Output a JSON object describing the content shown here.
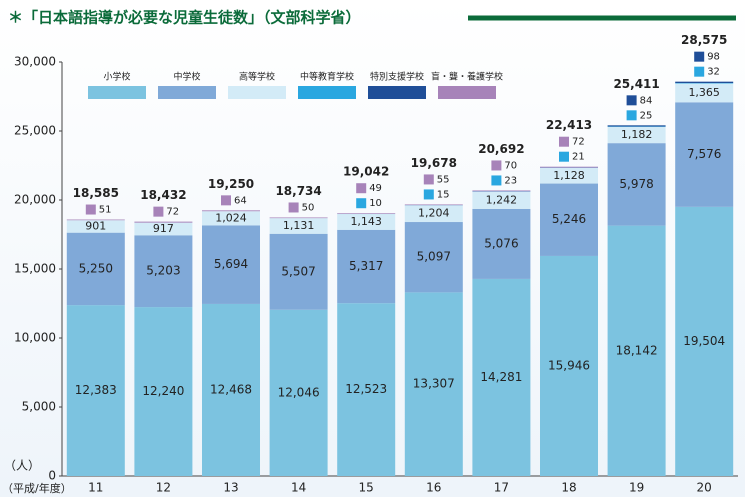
{
  "chart_data": {
    "type": "stacked_bar",
    "title": "＊「日本語指導が必要な児童生徒数」（文部科学省）",
    "y_label": "（人）",
    "x_label": "（平成/年度）",
    "categories": [
      "11",
      "12",
      "13",
      "14",
      "15",
      "16",
      "17",
      "18",
      "19",
      "20"
    ],
    "series": [
      {
        "name": "小学校",
        "color": "#7cc3e0",
        "values": [
          12383,
          12240,
          12468,
          12046,
          12523,
          13307,
          14281,
          15946,
          18142,
          19504
        ],
        "value_labels": [
          "12,383",
          "12,240",
          "12,468",
          "12,046",
          "12,523",
          "13,307",
          "14,281",
          "15,946",
          "18,142",
          "19,504"
        ]
      },
      {
        "name": "中学校",
        "color": "#80a9d8",
        "values": [
          5250,
          5203,
          5694,
          5507,
          5317,
          5097,
          5076,
          5246,
          5978,
          7576
        ],
        "value_labels": [
          "5,250",
          "5,203",
          "5,694",
          "5,507",
          "5,317",
          "5,097",
          "5,076",
          "5,246",
          "5,978",
          "7,576"
        ]
      },
      {
        "name": "高等学校",
        "color": "#d3ebf7",
        "values": [
          901,
          917,
          1024,
          1131,
          1143,
          1204,
          1242,
          1128,
          1182,
          1365
        ],
        "value_labels": [
          "901",
          "917",
          "1,024",
          "1,131",
          "1,143",
          "1,204",
          "1,242",
          "1,128",
          "1,182",
          "1,365"
        ]
      },
      {
        "name": "中等教育学校",
        "color": "#2aa7e0",
        "values": [
          null,
          null,
          null,
          null,
          10,
          15,
          23,
          21,
          25,
          32
        ]
      },
      {
        "name": "特別支援学校",
        "color": "#1f4e98",
        "values": [
          null,
          null,
          null,
          null,
          null,
          null,
          null,
          null,
          84,
          98
        ]
      },
      {
        "name": "盲・聾・養護学校",
        "color": "#a783b9",
        "values": [
          51,
          72,
          64,
          50,
          49,
          55,
          70,
          72,
          null,
          null
        ]
      }
    ],
    "totals": [
      18585,
      18432,
      19250,
      18734,
      19042,
      19678,
      20692,
      22413,
      25411,
      28575
    ],
    "total_labels": [
      "18,585",
      "18,432",
      "19,250",
      "18,734",
      "19,042",
      "19,678",
      "20,692",
      "22,413",
      "25,411",
      "28,575"
    ],
    "ylim": [
      0,
      30000
    ],
    "yticks": [
      0,
      {
        "value": 5000,
        "label": "5,000"
      },
      {
        "value": 10000,
        "label": "10,000"
      },
      {
        "value": 15000,
        "label": "15,000"
      },
      {
        "value": 20000,
        "label": "20,000"
      },
      {
        "value": 25000,
        "label": "25,000"
      },
      {
        "value": 30000,
        "label": "30,000"
      }
    ]
  }
}
